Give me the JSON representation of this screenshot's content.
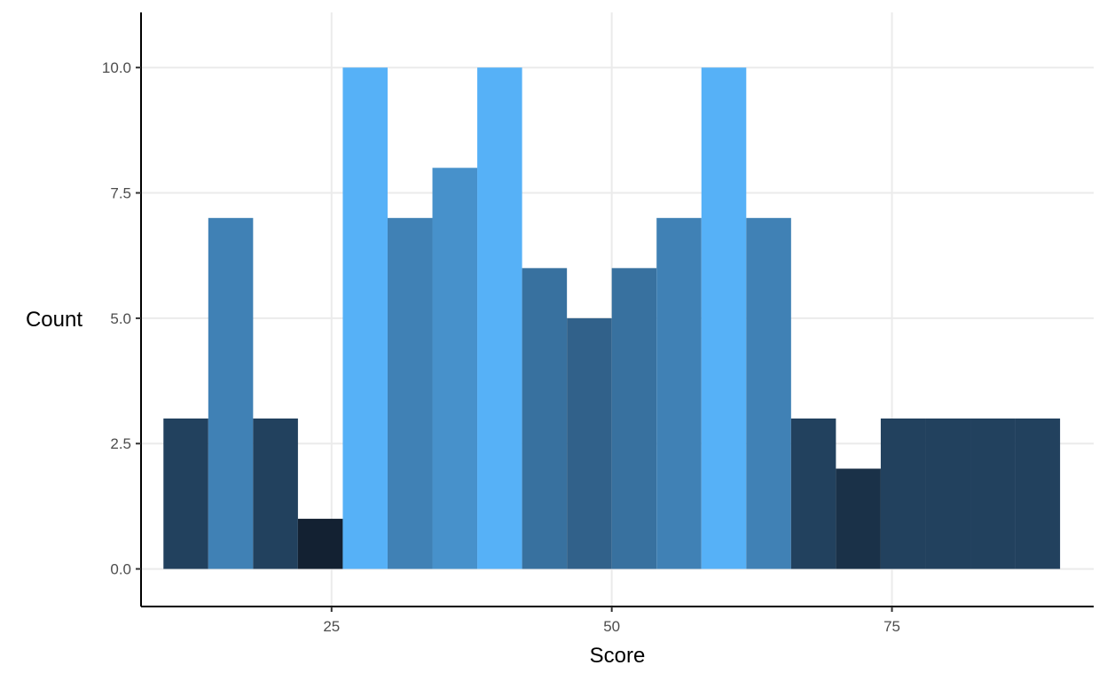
{
  "chart_data": {
    "type": "bar",
    "subtype": "histogram",
    "title": "",
    "xlabel": "Score",
    "ylabel": "Count",
    "xlim": [
      8,
      93
    ],
    "ylim": [
      -0.75,
      11.1
    ],
    "xticks": [
      25,
      50,
      75
    ],
    "yticks": [
      0.0,
      2.5,
      5.0,
      7.5,
      10.0
    ],
    "xtick_labels": [
      "25",
      "50",
      "75"
    ],
    "ytick_labels": [
      "0.0",
      "2.5",
      "5.0",
      "7.5",
      "10.0"
    ],
    "grid": true,
    "legend": "none",
    "bin_width": 4,
    "bins": [
      {
        "x0": 10,
        "x1": 14,
        "count": 3
      },
      {
        "x0": 14,
        "x1": 18,
        "count": 7
      },
      {
        "x0": 18,
        "x1": 22,
        "count": 3
      },
      {
        "x0": 22,
        "x1": 26,
        "count": 1
      },
      {
        "x0": 26,
        "x1": 30,
        "count": 10
      },
      {
        "x0": 30,
        "x1": 34,
        "count": 7
      },
      {
        "x0": 34,
        "x1": 38,
        "count": 8
      },
      {
        "x0": 38,
        "x1": 42,
        "count": 10
      },
      {
        "x0": 42,
        "x1": 46,
        "count": 6
      },
      {
        "x0": 46,
        "x1": 50,
        "count": 5
      },
      {
        "x0": 50,
        "x1": 54,
        "count": 6
      },
      {
        "x0": 54,
        "x1": 58,
        "count": 7
      },
      {
        "x0": 58,
        "x1": 62,
        "count": 10
      },
      {
        "x0": 62,
        "x1": 66,
        "count": 7
      },
      {
        "x0": 66,
        "x1": 70,
        "count": 3
      },
      {
        "x0": 70,
        "x1": 74,
        "count": 2
      },
      {
        "x0": 74,
        "x1": 78,
        "count": 3
      },
      {
        "x0": 78,
        "x1": 82,
        "count": 3
      },
      {
        "x0": 82,
        "x1": 86,
        "count": 3
      },
      {
        "x0": 86,
        "x1": 90,
        "count": 3
      }
    ],
    "fill_scale": {
      "low": "#132132",
      "high": "#56B1F7"
    },
    "colors": {
      "grid": "#ebebeb",
      "axis": "#000000",
      "tick_label": "#4d4d4d"
    }
  }
}
